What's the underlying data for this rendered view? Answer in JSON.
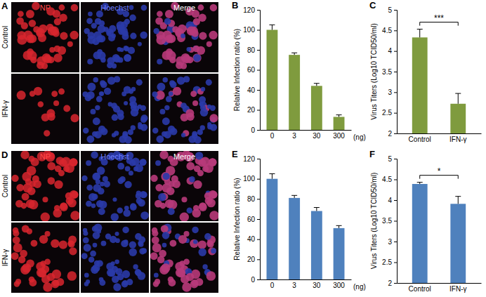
{
  "image_panels": [
    {
      "panel": "A",
      "columns": [
        "NP",
        "Hoechst",
        "Merge"
      ],
      "rows": [
        "Control",
        "IFN-γ"
      ]
    },
    {
      "panel": "D",
      "columns": [
        "NP",
        "Hoechst",
        "Merge"
      ],
      "rows": [
        "Control",
        "IFN-γ"
      ]
    }
  ],
  "chart_data": [
    {
      "type": "bar",
      "panel": "B",
      "categories": [
        "0",
        "3",
        "30",
        "300"
      ],
      "values": [
        100,
        75,
        44,
        13
      ],
      "errors": [
        5,
        2,
        2.5,
        2
      ],
      "color": "#7f9b3e",
      "ylim": [
        0,
        120
      ],
      "yticks": [
        0,
        20,
        40,
        60,
        80,
        100,
        120
      ],
      "y_label": "Relative Infection ratio (%)",
      "x_label": "(ng)"
    },
    {
      "type": "bar",
      "panel": "C",
      "categories": [
        "Control",
        "IFN-γ"
      ],
      "values": [
        4.33,
        2.72
      ],
      "errors": [
        0.2,
        0.25
      ],
      "color": "#7f9b3e",
      "ylim": [
        2,
        5
      ],
      "yticks": [
        2,
        2.5,
        3,
        3.5,
        4,
        4.5,
        5
      ],
      "y_label": "Virus Titers (Log10 TCID50/ml)",
      "significance": "***"
    },
    {
      "type": "bar",
      "panel": "E",
      "categories": [
        "0",
        "3",
        "30",
        "300"
      ],
      "values": [
        100,
        81,
        68,
        51
      ],
      "errors": [
        5,
        2.5,
        3.5,
        2.5
      ],
      "color": "#4f81bd",
      "ylim": [
        0,
        120
      ],
      "yticks": [
        0,
        20,
        40,
        60,
        80,
        100,
        120
      ],
      "y_label": "Relative Infection ratio (%)",
      "x_label": "(ng)"
    },
    {
      "type": "bar",
      "panel": "F",
      "categories": [
        "Control",
        "IFN-γ"
      ],
      "values": [
        4.39,
        3.91
      ],
      "errors": [
        0.04,
        0.18
      ],
      "color": "#4f81bd",
      "ylim": [
        2,
        5
      ],
      "yticks": [
        2,
        2.5,
        3,
        3.5,
        4,
        4.5,
        5
      ],
      "y_label": "Virus Titers (Log10 TCID50/ml)",
      "significance": "*"
    }
  ]
}
